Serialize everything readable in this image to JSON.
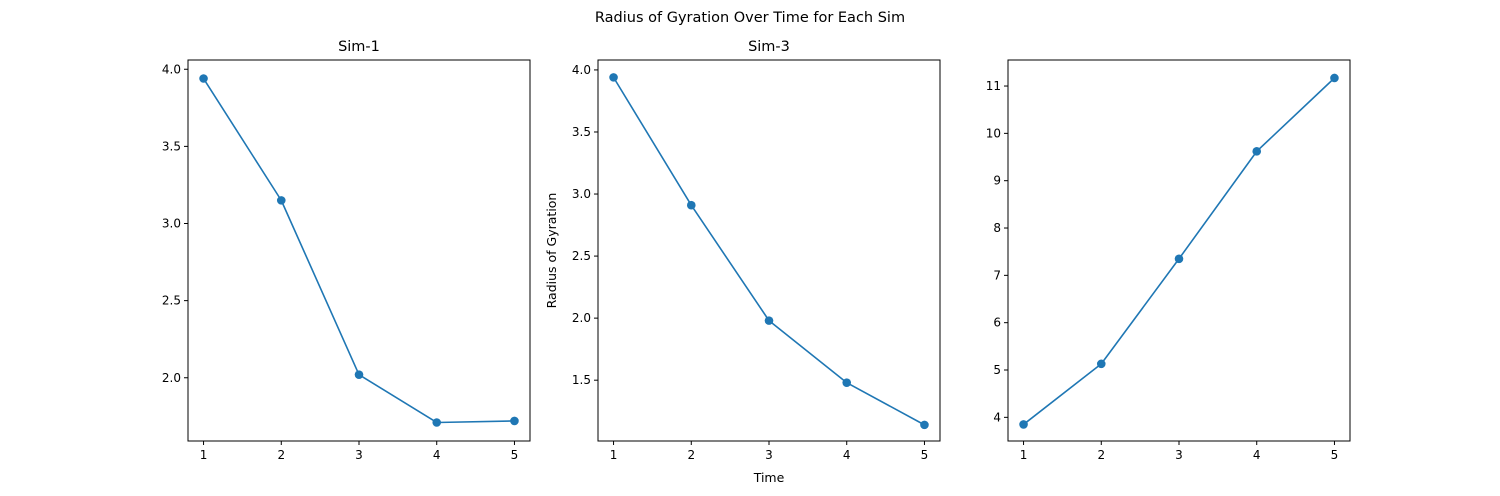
{
  "figure": {
    "suptitle": "Radius of Gyration Over Time for Each Sim"
  },
  "colors": {
    "series": "#1f77b4",
    "axis": "#000000",
    "background": "#ffffff"
  },
  "chart_data": [
    {
      "type": "line",
      "title": "Sim-1",
      "xlabel": "",
      "ylabel": "",
      "x": [
        1,
        2,
        3,
        4,
        5
      ],
      "xticks": [
        1,
        2,
        3,
        4,
        5
      ],
      "xlim": [
        0.8,
        5.2
      ],
      "yticks": [
        2.0,
        2.5,
        3.0,
        3.5,
        4.0
      ],
      "ylim": [
        1.59,
        4.06
      ],
      "grid": false,
      "marker": "circle",
      "series": [
        {
          "values": [
            3.94,
            3.15,
            2.02,
            1.71,
            1.72
          ]
        }
      ]
    },
    {
      "type": "line",
      "title": "Sim-3",
      "xlabel": "Time",
      "ylabel": "Radius of Gyration",
      "x": [
        1,
        2,
        3,
        4,
        5
      ],
      "xticks": [
        1,
        2,
        3,
        4,
        5
      ],
      "xlim": [
        0.8,
        5.2
      ],
      "yticks": [
        1.5,
        2.0,
        2.5,
        3.0,
        3.5,
        4.0
      ],
      "ylim": [
        1.01,
        4.08
      ],
      "grid": false,
      "marker": "circle",
      "series": [
        {
          "values": [
            3.94,
            2.91,
            1.98,
            1.48,
            1.14
          ]
        }
      ]
    },
    {
      "type": "line",
      "title": "",
      "xlabel": "",
      "ylabel": "",
      "x": [
        1,
        2,
        3,
        4,
        5
      ],
      "xticks": [
        1,
        2,
        3,
        4,
        5
      ],
      "xlim": [
        0.8,
        5.2
      ],
      "yticks": [
        4,
        5,
        6,
        7,
        8,
        9,
        10,
        11
      ],
      "ylim": [
        3.5,
        11.55
      ],
      "grid": false,
      "marker": "circle",
      "series": [
        {
          "values": [
            3.85,
            5.13,
            7.35,
            9.62,
            11.17
          ]
        }
      ]
    }
  ]
}
